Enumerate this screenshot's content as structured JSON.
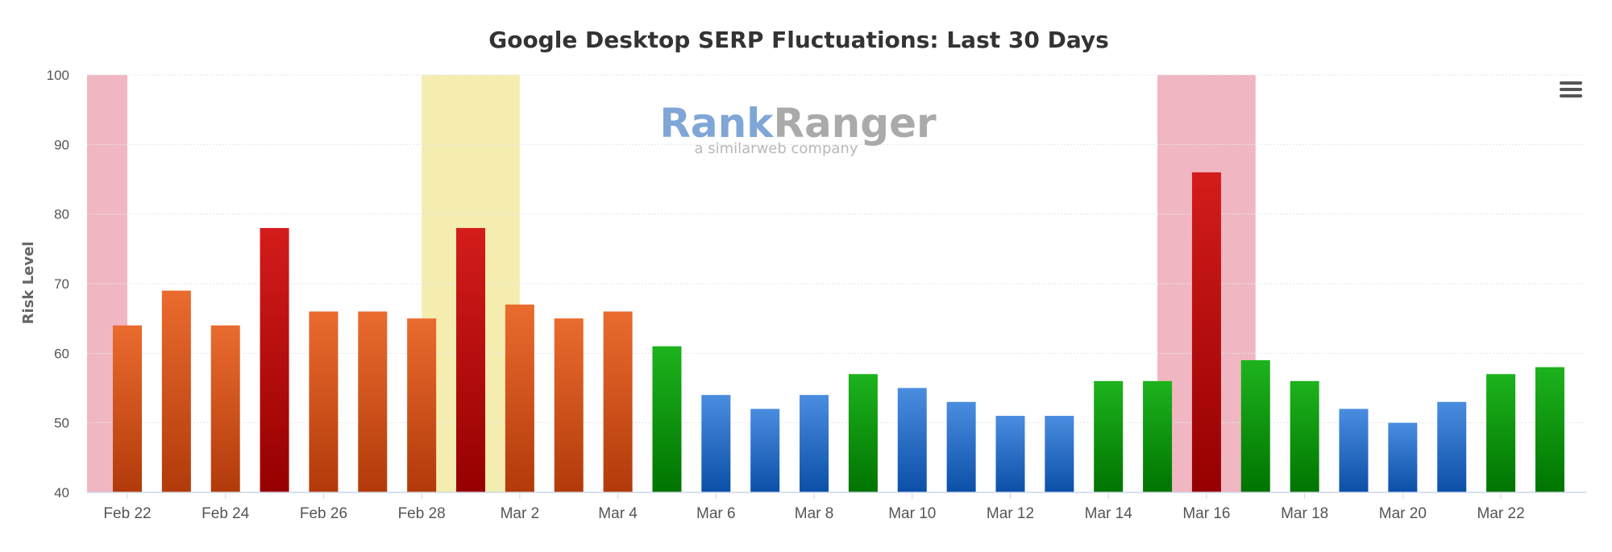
{
  "chart_data": {
    "type": "bar",
    "title": "Google Desktop SERP Fluctuations: Last 30 Days",
    "ylabel": "Risk Level",
    "xlabel": "",
    "ylim": [
      40,
      100
    ],
    "yticks": [
      40,
      50,
      60,
      70,
      80,
      90,
      100
    ],
    "x_tick_labels": [
      "Feb 22",
      "Feb 24",
      "Feb 26",
      "Feb 28",
      "Mar 2",
      "Mar 4",
      "Mar 6",
      "Mar 8",
      "Mar 10",
      "Mar 12",
      "Mar 14",
      "Mar 16",
      "Mar 18",
      "Mar 20",
      "Mar 22"
    ],
    "categories": [
      "Feb 22",
      "Feb 23",
      "Feb 24",
      "Feb 25",
      "Feb 26",
      "Feb 27",
      "Feb 28",
      "Mar 1",
      "Mar 2",
      "Mar 3",
      "Mar 4",
      "Mar 5",
      "Mar 6",
      "Mar 7",
      "Mar 8",
      "Mar 9",
      "Mar 10",
      "Mar 11",
      "Mar 12",
      "Mar 13",
      "Mar 14",
      "Mar 15",
      "Mar 16",
      "Mar 17",
      "Mar 18",
      "Mar 19",
      "Mar 20",
      "Mar 21",
      "Mar 22",
      "Mar 23"
    ],
    "values": [
      64,
      69,
      64,
      78,
      66,
      66,
      65,
      78,
      67,
      65,
      66,
      61,
      54,
      52,
      54,
      57,
      55,
      53,
      51,
      51,
      56,
      56,
      86,
      59,
      56,
      52,
      50,
      53,
      57,
      58
    ],
    "bar_level": [
      "orange",
      "orange",
      "orange",
      "red",
      "orange",
      "orange",
      "orange",
      "red",
      "orange",
      "orange",
      "orange",
      "green",
      "blue",
      "blue",
      "blue",
      "green",
      "blue",
      "blue",
      "blue",
      "blue",
      "green",
      "green",
      "red",
      "green",
      "green",
      "blue",
      "blue",
      "blue",
      "green",
      "green"
    ],
    "level_colors": {
      "red": {
        "top": "#d41c1c",
        "bottom": "#960000"
      },
      "orange": {
        "top": "#ea6b2e",
        "bottom": "#b23a0a"
      },
      "green": {
        "top": "#1db31d",
        "bottom": "#007400"
      },
      "blue": {
        "top": "#4a8de0",
        "bottom": "#0b4fa8"
      }
    },
    "highlight_bands": [
      {
        "from": "Feb 21",
        "to": "Feb 22",
        "color": "#f0b6c1"
      },
      {
        "from": "Feb 28",
        "to": "Mar 2",
        "color": "#f5ecb0"
      },
      {
        "from": "Mar 15",
        "to": "Mar 17",
        "color": "#f0b6c1"
      }
    ],
    "grid": true,
    "legend": "none"
  },
  "watermark": {
    "brand_part1": "Rank",
    "brand_part2": "Ranger",
    "tagline": "a similarweb company",
    "color_part1": "#7fa6d6",
    "color_part2": "#aaaaaa"
  },
  "menu": {
    "icon": "hamburger-menu-icon"
  }
}
